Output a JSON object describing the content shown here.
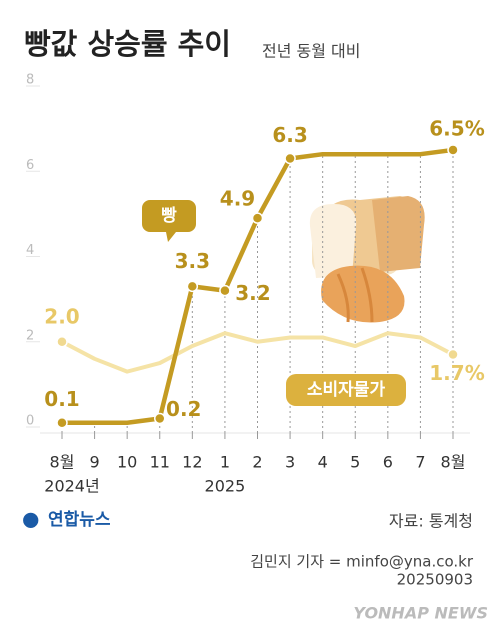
{
  "chart_data": {
    "type": "line",
    "title": "빵값 상승률 추이",
    "subtitle": "전년 동월 대비",
    "categories": [
      "8월",
      "9",
      "10",
      "11",
      "12",
      "1",
      "2",
      "3",
      "4",
      "5",
      "6",
      "7",
      "8월"
    ],
    "year_labels": [
      "2024년",
      "2025"
    ],
    "series": [
      {
        "name": "빵",
        "color": "#c49b22",
        "values": [
          0.1,
          0.1,
          0.1,
          0.2,
          3.3,
          3.2,
          4.9,
          6.3,
          6.4,
          6.4,
          6.4,
          6.4,
          6.5
        ],
        "value_labels": [
          "0.1",
          null,
          null,
          "0.2",
          "3.3",
          "3.2",
          "4.9",
          "6.3",
          null,
          null,
          null,
          null,
          "6.5%"
        ]
      },
      {
        "name": "소비자물가",
        "color": "#f5e3a6",
        "values": [
          2.0,
          1.6,
          1.3,
          1.5,
          1.9,
          2.2,
          2.0,
          2.1,
          2.1,
          1.9,
          2.2,
          2.1,
          1.7
        ],
        "value_labels": [
          "2.0",
          null,
          null,
          null,
          null,
          null,
          null,
          null,
          null,
          null,
          null,
          null,
          "1.7%"
        ]
      }
    ],
    "ylim": [
      0,
      8
    ],
    "yticks": [
      0,
      2,
      4,
      6,
      8
    ],
    "logo": "연합뉴스",
    "source": "자료: 통계청",
    "byline": "김민지 기자 = minfo@yna.co.kr",
    "date": "20250903",
    "watermark": "YONHAP NEWS"
  }
}
